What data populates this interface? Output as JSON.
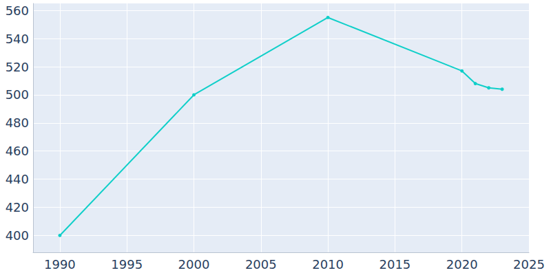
{
  "chart_data": {
    "type": "line",
    "x": [
      1990,
      2000,
      2010,
      2020,
      2021,
      2022,
      2023
    ],
    "values": [
      400,
      500,
      555,
      517,
      508,
      505,
      504
    ],
    "color": "#10cfc9",
    "marker": "circle",
    "xlim": [
      1988,
      2025
    ],
    "xticks": [
      1990,
      1995,
      2000,
      2005,
      2010,
      2015,
      2020,
      2025
    ],
    "ylim": [
      388,
      565
    ],
    "yticks": [
      400,
      420,
      440,
      460,
      480,
      500,
      520,
      540,
      560
    ],
    "grid": true
  }
}
